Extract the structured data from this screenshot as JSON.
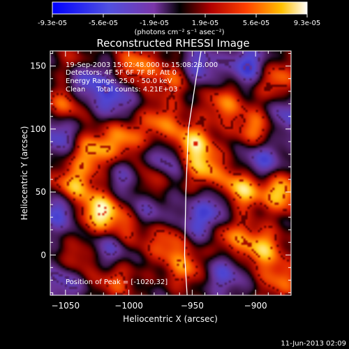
{
  "colorbar": {
    "tick_labels": [
      "-9.3e-05",
      "-5.6e-05",
      "-1.9e-05",
      "1.9e-05",
      "5.6e-05",
      "9.3e-05"
    ],
    "unit_label": "(photons cm⁻² s⁻¹ asec⁻²)",
    "range": [
      -9.3e-05,
      9.3e-05
    ]
  },
  "chart_data": {
    "type": "heatmap",
    "title": "Reconstructed RHESSI Image",
    "xlabel": "Heliocentric X (arcsec)",
    "ylabel": "Heliocentric Y (arcsec)",
    "xlim": [
      -1062,
      -872
    ],
    "ylim": [
      -32,
      162
    ],
    "x_ticks": [
      -1050,
      -1000,
      -950,
      -900
    ],
    "y_ticks": [
      0,
      50,
      100,
      150
    ],
    "annotations": [
      "19-Sep-2003 15:02:48.000 to 15:08:28.000",
      "Detectors: 4F 5F 6F 7F 8F, Att 0",
      "Energy Range: 25.0 - 50.0 keV",
      "Clean     Total counts: 4.21E+03"
    ],
    "peak_label": "Position of Peak = [-1020,32]",
    "peak_position": [
      -1020,
      32
    ],
    "hot_spots": [
      {
        "x": -1022,
        "y": 34,
        "v": 1.0
      },
      {
        "x": -1044,
        "y": 55,
        "v": 0.75
      },
      {
        "x": -1030,
        "y": 82,
        "v": 0.7
      },
      {
        "x": -1005,
        "y": 92,
        "v": 0.6
      },
      {
        "x": -985,
        "y": 60,
        "v": 0.6
      },
      {
        "x": -975,
        "y": 105,
        "v": 0.55
      },
      {
        "x": -950,
        "y": 88,
        "v": 0.85
      },
      {
        "x": -940,
        "y": 68,
        "v": 0.65
      },
      {
        "x": -912,
        "y": 52,
        "v": 0.9
      },
      {
        "x": -880,
        "y": 50,
        "v": 0.8
      },
      {
        "x": -900,
        "y": 100,
        "v": 0.6
      },
      {
        "x": -925,
        "y": 120,
        "v": 0.55
      },
      {
        "x": -885,
        "y": 140,
        "v": 0.6
      },
      {
        "x": -1050,
        "y": 120,
        "v": 0.55
      },
      {
        "x": -1040,
        "y": 150,
        "v": 0.5
      },
      {
        "x": -995,
        "y": 150,
        "v": 0.6
      },
      {
        "x": -965,
        "y": 140,
        "v": 0.5
      },
      {
        "x": -1000,
        "y": 20,
        "v": 0.45
      },
      {
        "x": -970,
        "y": 10,
        "v": 0.5
      },
      {
        "x": -955,
        "y": -10,
        "v": 0.55
      },
      {
        "x": -920,
        "y": 15,
        "v": 0.55
      },
      {
        "x": -895,
        "y": 5,
        "v": 0.75
      },
      {
        "x": -880,
        "y": -20,
        "v": 0.5
      },
      {
        "x": -1040,
        "y": -5,
        "v": 0.45
      },
      {
        "x": -1010,
        "y": -20,
        "v": 0.45
      }
    ],
    "cold_spots": [
      {
        "x": -1035,
        "y": 140,
        "v": -0.8
      },
      {
        "x": -1012,
        "y": 125,
        "v": -0.6
      },
      {
        "x": -1055,
        "y": 95,
        "v": -0.55
      },
      {
        "x": -1055,
        "y": 35,
        "v": -0.6
      },
      {
        "x": -1000,
        "y": 60,
        "v": -0.5
      },
      {
        "x": -970,
        "y": 75,
        "v": -0.55
      },
      {
        "x": -1015,
        "y": 5,
        "v": -0.5
      },
      {
        "x": -985,
        "y": 35,
        "v": -0.4
      },
      {
        "x": -945,
        "y": 25,
        "v": -0.5
      },
      {
        "x": -930,
        "y": 40,
        "v": -0.45
      },
      {
        "x": -895,
        "y": 75,
        "v": -0.6
      },
      {
        "x": -905,
        "y": 150,
        "v": -0.7
      },
      {
        "x": -945,
        "y": 150,
        "v": -0.55
      },
      {
        "x": -875,
        "y": 110,
        "v": -0.5
      },
      {
        "x": -1050,
        "y": -20,
        "v": -0.5
      },
      {
        "x": -925,
        "y": -15,
        "v": -0.5
      }
    ],
    "limb_curve": [
      {
        "x": -954,
        "y": -32
      },
      {
        "x": -956,
        "y": 0
      },
      {
        "x": -955,
        "y": 50
      },
      {
        "x": -953,
        "y": 100
      },
      {
        "x": -947,
        "y": 140
      },
      {
        "x": -943,
        "y": 162
      }
    ]
  },
  "footer": {
    "timestamp": "11-Jun-2013 02:09"
  }
}
